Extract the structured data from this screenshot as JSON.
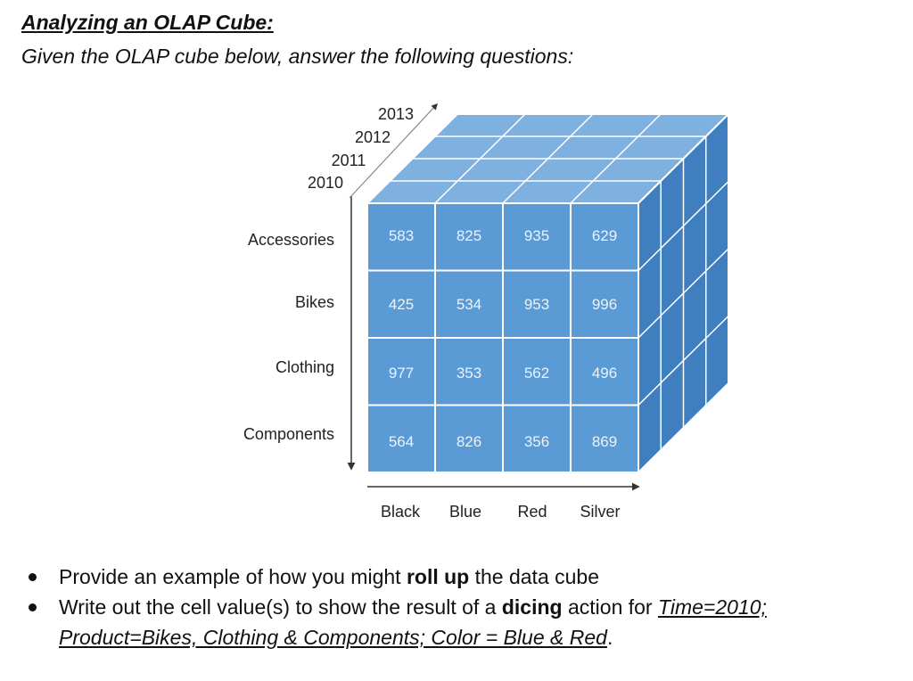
{
  "document": {
    "heading": "Analyzing an OLAP Cube:",
    "subheading": "Given the OLAP cube below, answer the following questions:"
  },
  "cube": {
    "years": [
      "2010",
      "2011",
      "2012",
      "2013"
    ],
    "products": [
      "Accessories",
      "Bikes",
      "Clothing",
      "Components"
    ],
    "colors": [
      "Black",
      "Blue",
      "Red",
      "Silver"
    ],
    "values": [
      [
        "583",
        "825",
        "935",
        "629"
      ],
      [
        "425",
        "534",
        "953",
        "996"
      ],
      [
        "977",
        "353",
        "562",
        "496"
      ],
      [
        "564",
        "826",
        "356",
        "869"
      ]
    ],
    "palette": {
      "front": "#5b9bd5",
      "top": "#7eb0e0",
      "side": "#3f7fbf",
      "edge": "#ffffff",
      "value_text": "#eaf2fb",
      "axis": "#333333"
    }
  },
  "questions": {
    "q1": {
      "before": "Provide an example of how you might ",
      "bold": "roll up",
      "after": " the data cube"
    },
    "q2": {
      "before": "Write out the cell value(s) to show the result of a ",
      "bold": "dicing",
      "middle": " action for ",
      "link_time": "Time=2010;",
      "link_rest": "Product=Bikes, Clothing & Components; Color = Blue & Red",
      "end": "."
    }
  }
}
